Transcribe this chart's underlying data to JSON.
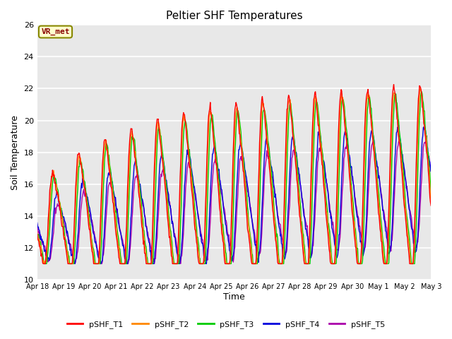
{
  "title": "Peltier SHF Temperatures",
  "xlabel": "Time",
  "ylabel": "Soil Temperature",
  "ylim": [
    10,
    26
  ],
  "annotation": "VR_met",
  "fig_bg_color": "#ffffff",
  "plot_bg_color": "#e8e8e8",
  "grid_color": "#ffffff",
  "xtick_labels": [
    "Apr 18",
    "Apr 19",
    "Apr 20",
    "Apr 21",
    "Apr 22",
    "Apr 23",
    "Apr 24",
    "Apr 25",
    "Apr 26",
    "Apr 27",
    "Apr 28",
    "Apr 29",
    "Apr 30",
    "May 1",
    "May 2",
    "May 3"
  ],
  "series_colors": {
    "pSHF_T1": "#ff0000",
    "pSHF_T2": "#ff8800",
    "pSHF_T3": "#00cc00",
    "pSHF_T4": "#0000dd",
    "pSHF_T5": "#aa00aa"
  },
  "legend_labels": [
    "pSHF_T1",
    "pSHF_T2",
    "pSHF_T3",
    "pSHF_T4",
    "pSHF_T5"
  ]
}
